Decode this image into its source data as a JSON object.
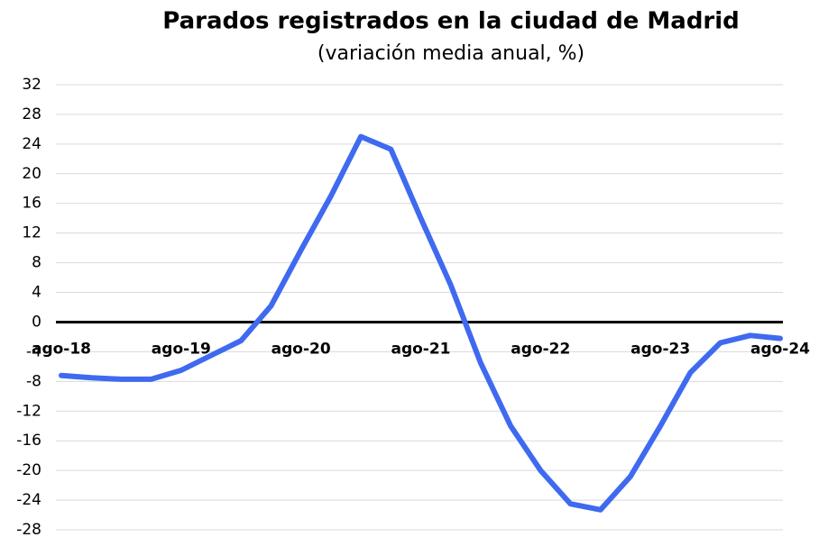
{
  "chart_data": {
    "type": "line",
    "title": "Parados registrados en la ciudad de Madrid",
    "subtitle": "(variación media anual, %)",
    "categories": [
      "ago-18",
      null,
      null,
      null,
      "ago-19",
      null,
      null,
      null,
      "ago-20",
      null,
      null,
      null,
      "ago-21",
      null,
      null,
      null,
      "ago-22",
      null,
      null,
      null,
      "ago-23",
      null,
      null,
      null,
      "ago-24"
    ],
    "series": [
      {
        "name": "Parados registrados",
        "color": "#3f6af0",
        "values": [
          -7.2,
          -7.5,
          -7.7,
          -7.7,
          -6.5,
          -4.5,
          -2.5,
          2.2,
          9.7,
          17,
          25,
          23.3,
          14,
          5,
          -5.5,
          -14,
          -20,
          -24.5,
          -25.3,
          -20.8,
          -14,
          -6.8,
          -2.8,
          -1.8,
          -2.2
        ]
      }
    ],
    "ylim": [
      -28,
      32
    ],
    "yticks": [
      -28,
      -24,
      -20,
      -16,
      -12,
      -8,
      -4,
      0,
      4,
      8,
      12,
      16,
      20,
      24,
      28,
      32
    ],
    "grid": true
  }
}
